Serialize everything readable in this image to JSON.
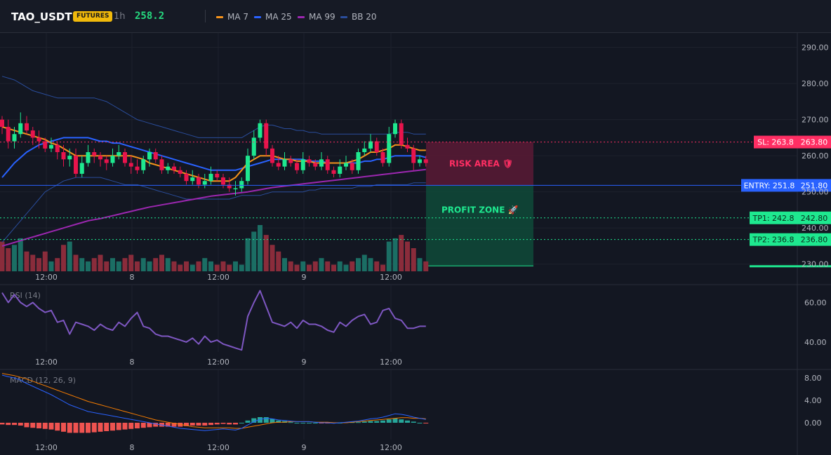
{
  "header": {
    "symbol": "TAO_USDT",
    "badge": "FUTURES",
    "timeframe": "1h",
    "price": "258.2",
    "legend": [
      {
        "label": "MA 7",
        "color": "#f7931a"
      },
      {
        "label": "MA 25",
        "color": "#2962ff"
      },
      {
        "label": "MA 99",
        "color": "#9c27b0"
      },
      {
        "label": "BB 20",
        "color": "#2a4d9c"
      }
    ]
  },
  "colors": {
    "up": "#1ee88f",
    "down": "#e8144c",
    "vol_up": "#1b6e64",
    "vol_down": "#8a2c3b",
    "ma7": "#f7931a",
    "ma25": "#2962ff",
    "ma99": "#9c27b0",
    "bb": "#2a4d9c",
    "rsi": "#7e57c2",
    "macd": "#2962ff",
    "signal": "#f57c00",
    "hist_up": "#26a69a",
    "hist_down": "#ef5350"
  },
  "chart_data": [
    {
      "type": "candlestick",
      "name": "price",
      "x_ticks": [
        "12:00",
        "8",
        "12:00",
        "9",
        "12:00"
      ],
      "y_ticks": [
        "290.00",
        "280.00",
        "270.00",
        "260.00",
        "250.00",
        "240.00",
        "230.00"
      ],
      "ylim": [
        228,
        294
      ],
      "candles": [
        [
          270,
          268,
          271,
          266
        ],
        [
          268,
          264,
          270,
          262
        ],
        [
          264,
          266,
          268,
          262
        ],
        [
          266,
          269,
          272,
          265
        ],
        [
          269,
          267,
          271,
          266
        ],
        [
          267,
          265,
          268,
          263
        ],
        [
          265,
          264,
          267,
          262
        ],
        [
          264,
          262,
          265,
          261
        ],
        [
          262,
          263,
          265,
          261
        ],
        [
          263,
          261,
          264,
          259
        ],
        [
          261,
          259,
          263,
          257
        ],
        [
          259,
          260,
          262,
          257
        ],
        [
          260,
          255,
          262,
          254
        ],
        [
          255,
          258,
          260,
          254
        ],
        [
          258,
          261,
          263,
          257
        ],
        [
          261,
          260,
          262,
          258
        ],
        [
          260,
          259,
          261,
          257
        ],
        [
          259,
          258,
          260,
          256
        ],
        [
          258,
          260,
          262,
          257
        ],
        [
          260,
          261,
          263,
          259
        ],
        [
          261,
          258,
          262,
          257
        ],
        [
          258,
          257,
          260,
          255
        ],
        [
          257,
          256,
          259,
          255
        ],
        [
          256,
          259,
          260,
          255
        ],
        [
          259,
          261,
          262,
          257
        ],
        [
          261,
          259,
          262,
          258
        ],
        [
          259,
          256,
          260,
          255
        ],
        [
          256,
          257,
          258,
          255
        ],
        [
          257,
          256,
          258,
          255
        ],
        [
          256,
          255,
          257,
          254
        ],
        [
          255,
          253,
          256,
          252
        ],
        [
          253,
          254,
          256,
          252
        ],
        [
          254,
          252,
          255,
          251
        ],
        [
          252,
          253,
          255,
          251
        ],
        [
          253,
          255,
          257,
          252
        ],
        [
          255,
          254,
          256,
          253
        ],
        [
          254,
          252,
          255,
          251
        ],
        [
          252,
          251,
          254,
          250
        ],
        [
          251,
          251,
          253,
          249
        ],
        [
          251,
          253,
          254,
          250
        ],
        [
          253,
          260,
          262,
          252
        ],
        [
          260,
          265,
          267,
          259
        ],
        [
          265,
          269,
          270,
          264
        ],
        [
          269,
          262,
          270,
          260
        ],
        [
          262,
          258,
          263,
          257
        ],
        [
          258,
          257,
          260,
          256
        ],
        [
          257,
          259,
          261,
          256
        ],
        [
          259,
          258,
          260,
          257
        ],
        [
          258,
          256,
          259,
          255
        ],
        [
          256,
          259,
          261,
          255
        ],
        [
          259,
          258,
          260,
          257
        ],
        [
          258,
          257,
          259,
          256
        ],
        [
          257,
          259,
          261,
          256
        ],
        [
          259,
          256,
          260,
          255
        ],
        [
          256,
          255,
          257,
          254
        ],
        [
          255,
          257,
          259,
          254
        ],
        [
          257,
          258,
          260,
          256
        ],
        [
          258,
          256,
          259,
          255
        ],
        [
          256,
          261,
          262,
          255
        ],
        [
          261,
          262,
          264,
          260
        ],
        [
          262,
          264,
          266,
          261
        ],
        [
          264,
          261,
          265,
          260
        ],
        [
          261,
          258,
          262,
          257
        ],
        [
          258,
          266,
          268,
          257
        ],
        [
          266,
          269,
          270,
          265
        ],
        [
          269,
          263,
          270,
          262
        ],
        [
          263,
          262,
          265,
          261
        ],
        [
          262,
          258,
          263,
          256
        ],
        [
          258,
          259,
          260,
          257
        ],
        [
          259,
          258,
          260,
          257
        ]
      ],
      "volume": [
        9,
        7,
        8,
        10,
        6,
        5,
        4,
        6,
        3,
        4,
        8,
        9,
        5,
        4,
        3,
        4,
        5,
        3,
        4,
        3,
        4,
        5,
        3,
        4,
        3,
        4,
        5,
        4,
        3,
        2,
        3,
        2,
        3,
        4,
        3,
        2,
        3,
        2,
        3,
        2,
        10,
        12,
        14,
        11,
        8,
        6,
        4,
        3,
        2,
        3,
        2,
        3,
        4,
        3,
        2,
        3,
        2,
        3,
        4,
        5,
        4,
        3,
        2,
        9,
        10,
        11,
        9,
        7,
        4,
        3
      ],
      "ma7": [
        268,
        267.5,
        267,
        266.5,
        266,
        265.5,
        265,
        264.5,
        263.5,
        263,
        262,
        261,
        260,
        260,
        260,
        260,
        260,
        260,
        260,
        260,
        260,
        260,
        259.5,
        259,
        258,
        257.5,
        257,
        256.5,
        256,
        255.5,
        255,
        254.5,
        254,
        253.5,
        253,
        253,
        253,
        253,
        254,
        256,
        258,
        259,
        260,
        260,
        260,
        259.5,
        259,
        259,
        258.5,
        258.5,
        258.5,
        258,
        258,
        258,
        258,
        258,
        258,
        258.5,
        259,
        260,
        261,
        261,
        261.5,
        262,
        263,
        263,
        262.5,
        262,
        261.5,
        261.5
      ],
      "ma25": [
        254,
        256,
        258,
        259.5,
        261,
        262,
        263,
        263.5,
        264,
        264.5,
        265,
        265,
        265,
        265,
        265,
        264.5,
        264,
        264,
        263.5,
        263.5,
        263,
        262.5,
        262,
        261.5,
        261,
        260.5,
        260,
        259.5,
        259,
        258.5,
        258,
        257.5,
        257,
        256.5,
        256,
        256,
        256,
        256,
        256,
        256.5,
        257,
        257.5,
        258,
        258.5,
        259,
        259,
        259,
        259,
        259,
        259,
        258.5,
        258.5,
        258.5,
        258,
        258,
        258,
        258,
        258,
        258,
        258.5,
        258.5,
        259,
        259,
        259.5,
        260,
        260,
        260,
        260,
        260,
        259.5
      ],
      "ma99": [
        235,
        235.5,
        236,
        236.5,
        237,
        237.5,
        238,
        238.5,
        239,
        239.5,
        240,
        240.5,
        241,
        241.5,
        242,
        242.3,
        242.6,
        243,
        243.4,
        243.8,
        244.2,
        244.6,
        245,
        245.4,
        245.8,
        246.1,
        246.4,
        246.7,
        247,
        247.3,
        247.6,
        247.9,
        248.2,
        248.5,
        248.8,
        249,
        249.2,
        249.4,
        249.6,
        249.8,
        250,
        250.3,
        250.6,
        250.9,
        251.2,
        251.4,
        251.6,
        251.8,
        252,
        252.2,
        252.4,
        252.6,
        252.8,
        253,
        253.2,
        253.4,
        253.6,
        253.8,
        254,
        254.2,
        254.4,
        254.6,
        254.8,
        255,
        255.2,
        255.4,
        255.6,
        255.8,
        256,
        256.2
      ],
      "bb_upper": [
        282,
        281.5,
        281,
        280,
        279,
        278,
        277.5,
        277,
        276.5,
        276,
        276,
        276,
        276,
        276,
        276,
        276,
        275.5,
        275,
        274,
        273,
        272,
        271,
        270,
        269.5,
        269,
        268.5,
        268,
        267.5,
        267,
        266.5,
        266,
        265.5,
        265,
        265,
        265,
        265,
        265,
        265,
        265,
        265,
        266,
        267,
        268,
        268.5,
        268.5,
        268,
        267.5,
        267.5,
        267,
        267,
        266.5,
        266.5,
        266,
        266,
        266,
        266,
        266,
        266,
        266,
        266,
        266,
        266,
        266,
        266,
        266.5,
        266.5,
        266.5,
        266,
        266,
        266
      ],
      "bb_lower": [
        236,
        238,
        240,
        242,
        244,
        246,
        248,
        250,
        251,
        252,
        253,
        253.5,
        254,
        254,
        254,
        254,
        254,
        253.5,
        253,
        252.5,
        252,
        252,
        252,
        251.5,
        251,
        250.5,
        250,
        249.5,
        249,
        248.5,
        248,
        248,
        248,
        248,
        248,
        248,
        248,
        248,
        248.5,
        249,
        249,
        249,
        249,
        249.5,
        250,
        250,
        250,
        250,
        250,
        250,
        250.5,
        250.5,
        251,
        251,
        251,
        251,
        251,
        251,
        251.5,
        251.5,
        251.5,
        252,
        252,
        252,
        252,
        252,
        252,
        252.5,
        252.5,
        252.5
      ],
      "levels": {
        "sl": {
          "label": "SL: 263.8",
          "value": 263.8,
          "axis": "263.80"
        },
        "entry": {
          "label": "ENTRY: 251.8",
          "value": 251.8,
          "axis": "251.80"
        },
        "tp1": {
          "label": "TP1: 242.8",
          "value": 242.8,
          "axis": "242.80"
        },
        "tp2": {
          "label": "TP2: 236.8",
          "value": 236.8,
          "axis": "236.80"
        }
      },
      "zones": {
        "risk_label": "RISK AREA 🛡",
        "profit_label": "PROFIT ZONE 🚀"
      }
    },
    {
      "type": "line",
      "name": "RSI (14)",
      "x_ticks": [
        "12:00",
        "8",
        "12:00",
        "9",
        "12:00"
      ],
      "y_ticks": [
        "60.00",
        "40.00"
      ],
      "ylim": [
        35,
        68
      ],
      "values": [
        65,
        60,
        64,
        60,
        58,
        60,
        57,
        55,
        56,
        50,
        51,
        44,
        50,
        49,
        48,
        46,
        49,
        47,
        46,
        50,
        48,
        52,
        55,
        48,
        47,
        44,
        43,
        43,
        42,
        41,
        40,
        42,
        39,
        43,
        40,
        41,
        39,
        38,
        37,
        36,
        53,
        60,
        66,
        58,
        50,
        49,
        48,
        50,
        47,
        51,
        49,
        49,
        48,
        46,
        45,
        50,
        48,
        51,
        53,
        54,
        49,
        50,
        56,
        57,
        52,
        51,
        47,
        47,
        48,
        48
      ]
    },
    {
      "type": "line",
      "name": "MACD (12, 26, 9)",
      "x_ticks": [
        "12:00",
        "8",
        "12:00",
        "9",
        "12:00"
      ],
      "y_ticks": [
        "8.00",
        "4.00",
        "0.00"
      ],
      "ylim": [
        -3,
        9
      ],
      "macd": [
        8.5,
        8.2,
        8.0,
        7.6,
        7.0,
        6.5,
        6.0,
        5.5,
        5.0,
        4.4,
        3.8,
        3.2,
        2.8,
        2.4,
        2.0,
        1.8,
        1.6,
        1.4,
        1.2,
        1.0,
        0.8,
        0.6,
        0.4,
        0.2,
        0.0,
        -0.2,
        -0.4,
        -0.6,
        -0.8,
        -1.0,
        -1.1,
        -1.2,
        -1.3,
        -1.4,
        -1.3,
        -1.2,
        -1.1,
        -1.2,
        -1.3,
        -1.0,
        -0.4,
        0.2,
        0.6,
        0.8,
        0.7,
        0.5,
        0.4,
        0.3,
        0.2,
        0.2,
        0.2,
        0.1,
        0.0,
        0.0,
        -0.1,
        0.0,
        0.1,
        0.2,
        0.3,
        0.5,
        0.7,
        0.8,
        1.0,
        1.3,
        1.6,
        1.5,
        1.3,
        1.0,
        0.8,
        0.6
      ],
      "signal": [
        8.8,
        8.6,
        8.4,
        8.1,
        7.8,
        7.4,
        7.0,
        6.6,
        6.2,
        5.8,
        5.4,
        5.0,
        4.6,
        4.2,
        3.8,
        3.5,
        3.2,
        2.9,
        2.6,
        2.3,
        2.0,
        1.7,
        1.4,
        1.1,
        0.8,
        0.5,
        0.3,
        0.1,
        -0.1,
        -0.3,
        -0.5,
        -0.7,
        -0.8,
        -0.9,
        -0.9,
        -0.9,
        -0.9,
        -0.9,
        -1.0,
        -1.0,
        -0.8,
        -0.6,
        -0.4,
        -0.2,
        0.0,
        0.1,
        0.1,
        0.2,
        0.2,
        0.2,
        0.2,
        0.1,
        0.1,
        0.1,
        0.0,
        0.0,
        0.0,
        0.1,
        0.2,
        0.3,
        0.4,
        0.5,
        0.6,
        0.7,
        0.8,
        0.9,
        0.9,
        0.8,
        0.8,
        0.7
      ],
      "histogram": [
        -0.3,
        -0.4,
        -0.4,
        -0.5,
        -0.8,
        -0.9,
        -1.0,
        -1.1,
        -1.2,
        -1.4,
        -1.6,
        -1.8,
        -1.8,
        -1.8,
        -1.8,
        -1.7,
        -1.6,
        -1.5,
        -1.4,
        -1.3,
        -1.2,
        -1.1,
        -1.0,
        -0.9,
        -0.8,
        -0.7,
        -0.7,
        -0.7,
        -0.7,
        -0.7,
        -0.6,
        -0.5,
        -0.5,
        -0.5,
        -0.4,
        -0.3,
        -0.2,
        -0.3,
        -0.3,
        0.0,
        0.4,
        0.8,
        1.0,
        1.0,
        0.7,
        0.4,
        0.3,
        0.1,
        0.0,
        0.0,
        0.0,
        0.0,
        -0.1,
        -0.1,
        -0.1,
        0.0,
        0.1,
        0.1,
        0.1,
        0.2,
        0.3,
        0.3,
        0.4,
        0.6,
        0.8,
        0.6,
        0.4,
        0.2,
        0.0,
        -0.1
      ]
    }
  ]
}
